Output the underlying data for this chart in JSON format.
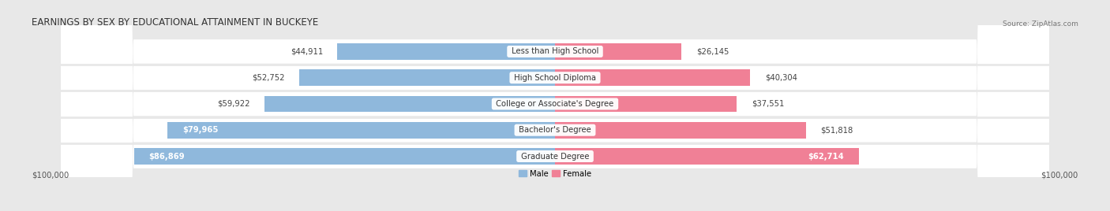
{
  "title": "EARNINGS BY SEX BY EDUCATIONAL ATTAINMENT IN BUCKEYE",
  "source": "Source: ZipAtlas.com",
  "categories": [
    "Less than High School",
    "High School Diploma",
    "College or Associate's Degree",
    "Bachelor's Degree",
    "Graduate Degree"
  ],
  "male_values": [
    44911,
    52752,
    59922,
    79965,
    86869
  ],
  "female_values": [
    26145,
    40304,
    37551,
    51818,
    62714
  ],
  "male_color": "#8fb8dc",
  "female_color": "#f08096",
  "max_value": 100000,
  "bg_color": "#e8e8e8",
  "row_bg_color": "#f5f5f5",
  "title_fontsize": 8.5,
  "label_fontsize": 7.2,
  "value_fontsize": 7.2,
  "source_fontsize": 6.5,
  "axis_label": "$100,000",
  "legend_male": "Male",
  "legend_female": "Female"
}
